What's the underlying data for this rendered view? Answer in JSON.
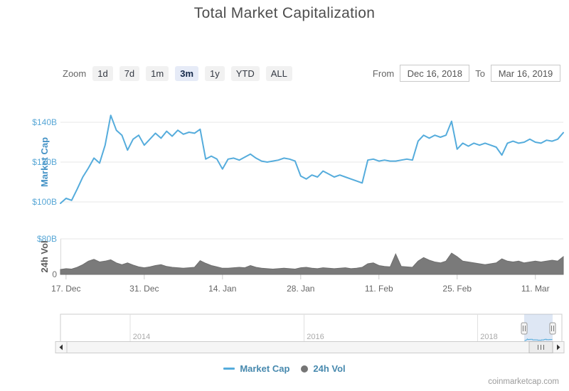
{
  "header": {
    "title": "Total Market Capitalization"
  },
  "controls": {
    "zoom_label": "Zoom",
    "zoom_buttons": [
      {
        "label": "1d",
        "selected": false
      },
      {
        "label": "7d",
        "selected": false
      },
      {
        "label": "1m",
        "selected": false
      },
      {
        "label": "3m",
        "selected": true
      },
      {
        "label": "1y",
        "selected": false
      },
      {
        "label": "YTD",
        "selected": false
      },
      {
        "label": "ALL",
        "selected": false
      }
    ],
    "from_label": "From",
    "from_value": "Dec 16, 2018",
    "to_label": "To",
    "to_value": "Mar 16, 2019"
  },
  "chart_data": [
    {
      "type": "line",
      "name": "Market Cap",
      "units": "USD billions",
      "color": "#55ACDC",
      "x_start": "Dec 16, 2018",
      "x_end": "Mar 16, 2019",
      "x_unit": "day",
      "ylabel": "Market Cap",
      "ylim": [
        95,
        150
      ],
      "yticks": [
        {
          "value": 100,
          "label": "$100B"
        },
        {
          "value": 120,
          "label": "$120B"
        },
        {
          "value": 140,
          "label": "$140B"
        }
      ],
      "xticks": [
        {
          "day": 1,
          "label": "17. Dec"
        },
        {
          "day": 15,
          "label": "31. Dec"
        },
        {
          "day": 29,
          "label": "14. Jan"
        },
        {
          "day": 43,
          "label": "28. Jan"
        },
        {
          "day": 57,
          "label": "11. Feb"
        },
        {
          "day": 71,
          "label": "25. Feb"
        },
        {
          "day": 85,
          "label": "11. Mar"
        }
      ],
      "values": [
        99.3,
        101.8,
        100.8,
        106.5,
        112.5,
        117,
        122,
        119.5,
        128.5,
        143.5,
        136,
        133.5,
        126,
        131.5,
        133.5,
        128.5,
        131.5,
        134.5,
        132,
        135.5,
        133,
        136,
        134,
        135,
        134.5,
        136.5,
        121.5,
        123,
        121.5,
        116.5,
        121.5,
        122,
        121,
        122.5,
        124,
        122,
        120.5,
        120,
        120.5,
        121,
        122,
        121.5,
        120.5,
        113,
        111.5,
        113.5,
        112.5,
        115.5,
        114,
        112.5,
        113.5,
        112.5,
        111.5,
        110.5,
        109.5,
        121,
        121.5,
        120.5,
        121,
        120.5,
        120.5,
        121,
        121.5,
        121,
        130.5,
        133.5,
        132,
        133.5,
        132.5,
        133.5,
        140.5,
        126.5,
        129.5,
        128,
        129.5,
        128.5,
        129.5,
        128.5,
        127.5,
        123.5,
        129.5,
        130.5,
        129.5,
        130,
        131.5,
        130,
        129.5,
        131,
        130.5,
        131.5,
        134.8
      ]
    },
    {
      "type": "area",
      "name": "24h Vol",
      "units": "USD billions",
      "color": "#7a7a7a",
      "x_start": "Dec 16, 2018",
      "x_end": "Mar 16, 2019",
      "x_unit": "day",
      "ylabel": "24h Vol",
      "ylim": [
        0,
        80
      ],
      "yticks": [
        {
          "value": 0,
          "label": "0"
        },
        {
          "value": 80,
          "label": "$80B"
        }
      ],
      "values": [
        11,
        13,
        12,
        16,
        22,
        30,
        34,
        28,
        30,
        33,
        26,
        22,
        26,
        21,
        17,
        15,
        17,
        20,
        22,
        18,
        16,
        15,
        14,
        15,
        16,
        31,
        25,
        20,
        17,
        14,
        14,
        15,
        16,
        15,
        20,
        16,
        14,
        13,
        12,
        13,
        14,
        13,
        12,
        15,
        16,
        14,
        13,
        15,
        14,
        13,
        14,
        15,
        13,
        14,
        16,
        24,
        26,
        20,
        18,
        17,
        46,
        18,
        17,
        16,
        30,
        38,
        32,
        28,
        26,
        30,
        48,
        40,
        30,
        28,
        26,
        24,
        22,
        24,
        26,
        35,
        30,
        28,
        30,
        26,
        28,
        30,
        28,
        30,
        32,
        30,
        40
      ]
    }
  ],
  "navigator": {
    "year_labels": [
      "2014",
      "2016",
      "2018"
    ],
    "selection_from": "Dec 16, 2018",
    "selection_to": "Mar 16, 2019"
  },
  "icons": {
    "scrollbar_left_arrow": "triangle-left",
    "scrollbar_right_arrow": "triangle-right",
    "navigator_handle_grip": "double-vertical-bar",
    "scrollbar_thumb_grip": "triple-vertical-bar"
  },
  "legend": {
    "items": [
      {
        "label": "Market Cap",
        "symbol": "line",
        "color": "#55ACDC"
      },
      {
        "label": "24h Vol",
        "symbol": "circle",
        "color": "#757575"
      }
    ],
    "text_color": "#4789AE"
  },
  "footer": {
    "watermark": "coinmarketcap.com"
  },
  "colors": {
    "title": "#4d4d4d",
    "marketcap_line": "#55ACDC",
    "volume_fill": "#7a7a7a",
    "axis_tick_blue": "#58A7D6",
    "axis_title_blue": "#4593C6",
    "axis_gray": "#707070",
    "gridline": "#e7e7e7",
    "selected_zoom_bg": "#e6ebf7",
    "navigator_mask": "#91AFDC"
  }
}
